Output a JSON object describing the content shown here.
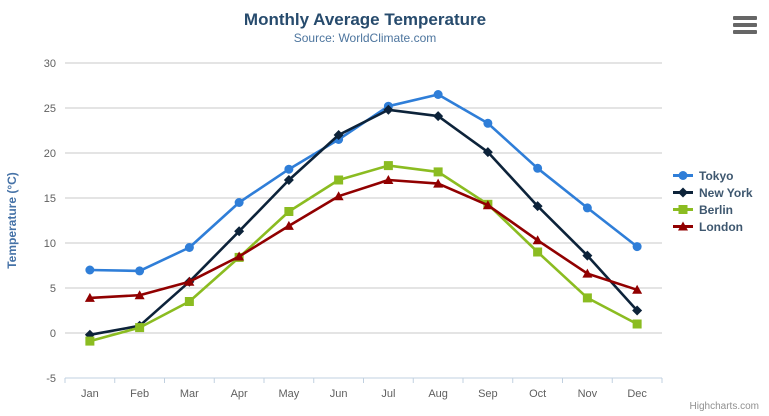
{
  "header": {
    "title": "Monthly Average Temperature",
    "subtitle": "Source: WorldClimate.com"
  },
  "credits": "Highcharts.com",
  "export_menu": {
    "icon": "hamburger-icon"
  },
  "colors": {
    "title": "#274b6d",
    "subtitle": "#4d759e",
    "axis_label": "#606060",
    "axis_title": "#4572a7",
    "grid_line": "#c8c8c8",
    "axis_line": "#c0d0e0",
    "legend_text": "#3e576f",
    "credits_text": "#909090",
    "menu_icon": "#666666"
  },
  "chart_data": {
    "type": "line",
    "title": "Monthly Average Temperature",
    "subtitle": "Source: WorldClimate.com",
    "categories": [
      "Jan",
      "Feb",
      "Mar",
      "Apr",
      "May",
      "Jun",
      "Jul",
      "Aug",
      "Sep",
      "Oct",
      "Nov",
      "Dec"
    ],
    "xlabel": "",
    "ylabel": "Temperature (°C)",
    "ylim": [
      -5,
      30
    ],
    "ytick_interval": 5,
    "yticks": [
      -5,
      0,
      5,
      10,
      15,
      20,
      25,
      30
    ],
    "grid": true,
    "legend_position": "right",
    "series": [
      {
        "name": "Tokyo",
        "color": "#2f7ed8",
        "marker": "circle",
        "values": [
          7.0,
          6.9,
          9.5,
          14.5,
          18.2,
          21.5,
          25.2,
          26.5,
          23.3,
          18.3,
          13.9,
          9.6
        ]
      },
      {
        "name": "New York",
        "color": "#0d233a",
        "marker": "diamond",
        "values": [
          -0.2,
          0.8,
          5.7,
          11.3,
          17.0,
          22.0,
          24.8,
          24.1,
          20.1,
          14.1,
          8.6,
          2.5
        ]
      },
      {
        "name": "Berlin",
        "color": "#8bbc21",
        "marker": "square",
        "values": [
          -0.9,
          0.6,
          3.5,
          8.4,
          13.5,
          17.0,
          18.6,
          17.9,
          14.3,
          9.0,
          3.9,
          1.0
        ]
      },
      {
        "name": "London",
        "color": "#910000",
        "marker": "triangle",
        "values": [
          3.9,
          4.2,
          5.7,
          8.5,
          11.9,
          15.2,
          17.0,
          16.6,
          14.2,
          10.3,
          6.6,
          4.8
        ]
      }
    ]
  }
}
